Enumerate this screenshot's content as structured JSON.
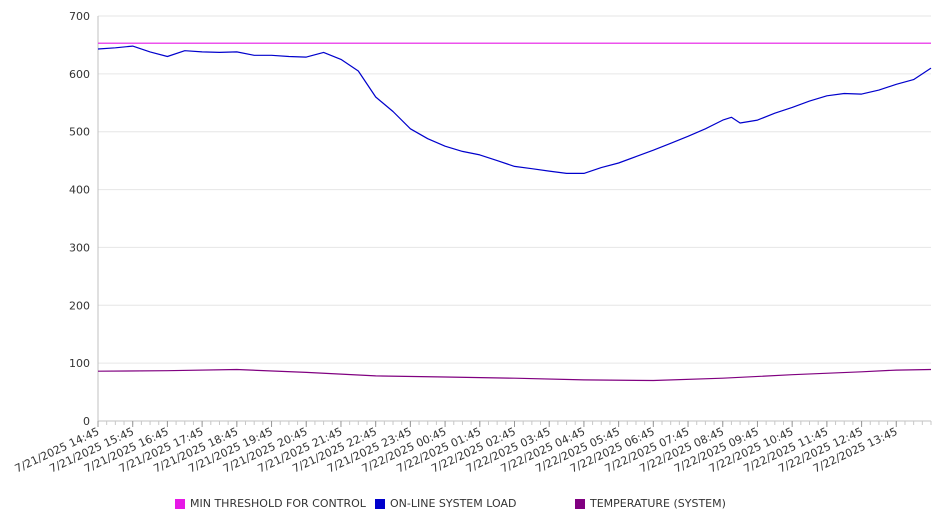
{
  "chart_data": {
    "type": "line",
    "title": "",
    "xlabel": "",
    "ylabel": "",
    "ylim": [
      0,
      700
    ],
    "y_ticks": [
      0,
      100,
      200,
      300,
      400,
      500,
      600,
      700
    ],
    "grid": true,
    "legend_position": "bottom",
    "x_start": "7/21/2025 14:45",
    "x_end": "7/22/2025 14:45",
    "x_tick_labels": [
      "7/21/2025 14:45",
      "7/21/2025 15:45",
      "7/21/2025 16:45",
      "7/21/2025 17:45",
      "7/21/2025 18:45",
      "7/21/2025 19:45",
      "7/21/2025 20:45",
      "7/21/2025 21:45",
      "7/21/2025 22:45",
      "7/21/2025 23:45",
      "7/22/2025 00:45",
      "7/22/2025 01:45",
      "7/22/2025 02:45",
      "7/22/2025 03:45",
      "7/22/2025 04:45",
      "7/22/2025 05:45",
      "7/22/2025 06:45",
      "7/22/2025 07:45",
      "7/22/2025 08:45",
      "7/22/2025 09:45",
      "7/22/2025 10:45",
      "7/22/2025 11:45",
      "7/22/2025 12:45",
      "7/22/2025 13:45"
    ],
    "series": [
      {
        "name": "MIN THRESHOLD FOR CONTROL",
        "color": "#e619e6",
        "x": [
          "7/21/2025 14:45",
          "7/22/2025 14:45"
        ],
        "values": [
          653,
          653
        ]
      },
      {
        "name": "ON-LINE SYSTEM LOAD",
        "color": "#0000cc",
        "x": [
          "7/21/2025 14:45",
          "7/21/2025 15:15",
          "7/21/2025 15:45",
          "7/21/2025 16:15",
          "7/21/2025 16:45",
          "7/21/2025 17:15",
          "7/21/2025 17:45",
          "7/21/2025 18:15",
          "7/21/2025 18:45",
          "7/21/2025 19:15",
          "7/21/2025 19:45",
          "7/21/2025 20:15",
          "7/21/2025 20:45",
          "7/21/2025 21:15",
          "7/21/2025 21:45",
          "7/21/2025 22:15",
          "7/21/2025 22:45",
          "7/21/2025 23:15",
          "7/21/2025 23:45",
          "7/22/2025 00:15",
          "7/22/2025 00:45",
          "7/22/2025 01:15",
          "7/22/2025 01:45",
          "7/22/2025 02:15",
          "7/22/2025 02:45",
          "7/22/2025 03:15",
          "7/22/2025 03:45",
          "7/22/2025 04:15",
          "7/22/2025 04:45",
          "7/22/2025 05:15",
          "7/22/2025 05:45",
          "7/22/2025 06:15",
          "7/22/2025 06:45",
          "7/22/2025 07:15",
          "7/22/2025 07:45",
          "7/22/2025 08:15",
          "7/22/2025 08:45",
          "7/22/2025 09:00",
          "7/22/2025 09:15",
          "7/22/2025 09:45",
          "7/22/2025 10:15",
          "7/22/2025 10:45",
          "7/22/2025 11:15",
          "7/22/2025 11:45",
          "7/22/2025 12:15",
          "7/22/2025 12:45",
          "7/22/2025 13:15",
          "7/22/2025 13:45",
          "7/22/2025 14:15",
          "7/22/2025 14:45"
        ],
        "values": [
          643,
          645,
          648,
          638,
          630,
          640,
          638,
          637,
          638,
          632,
          632,
          630,
          629,
          637,
          625,
          605,
          560,
          535,
          505,
          488,
          475,
          466,
          460,
          450,
          440,
          436,
          432,
          428,
          428,
          438,
          446,
          457,
          468,
          480,
          492,
          505,
          520,
          525,
          515,
          520,
          532,
          542,
          553,
          562,
          566,
          565,
          572,
          582,
          590,
          610
        ]
      },
      {
        "name": "TEMPERATURE (SYSTEM)",
        "color": "#800080",
        "x": [
          "7/21/2025 14:45",
          "7/21/2025 16:45",
          "7/21/2025 18:45",
          "7/21/2025 20:45",
          "7/21/2025 22:45",
          "7/22/2025 00:45",
          "7/22/2025 02:45",
          "7/22/2025 04:45",
          "7/22/2025 06:45",
          "7/22/2025 08:45",
          "7/22/2025 10:45",
          "7/22/2025 12:45",
          "7/22/2025 13:45",
          "7/22/2025 14:45"
        ],
        "values": [
          86,
          87,
          89,
          84,
          78,
          76,
          74,
          71,
          70,
          74,
          80,
          85,
          88,
          89
        ]
      }
    ]
  }
}
